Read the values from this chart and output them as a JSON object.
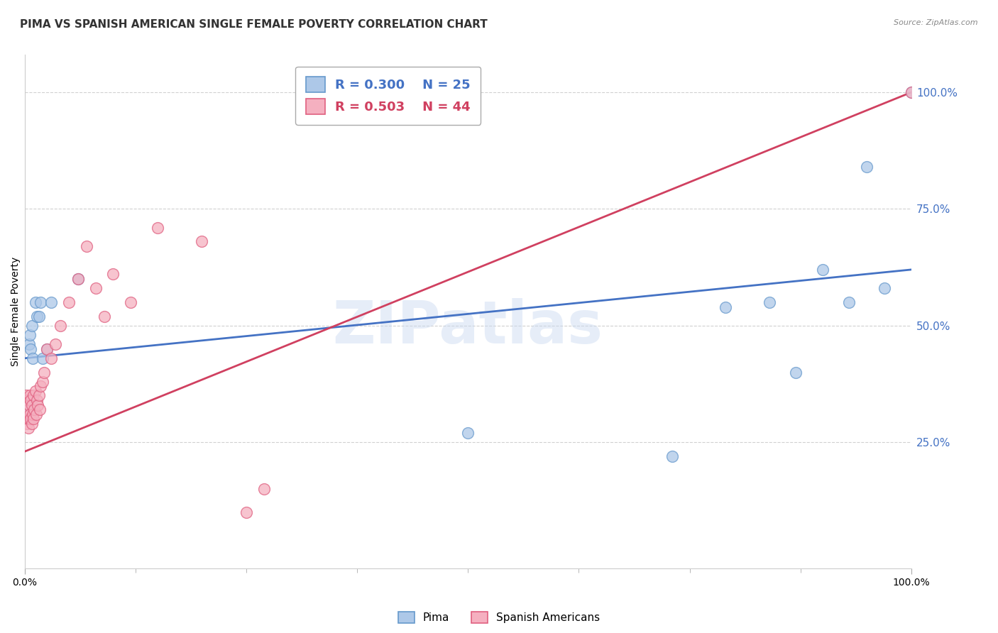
{
  "title": "PIMA VS SPANISH AMERICAN SINGLE FEMALE POVERTY CORRELATION CHART",
  "source": "Source: ZipAtlas.com",
  "ylabel": "Single Female Poverty",
  "watermark": "ZIPatlas",
  "right_ytick_labels": [
    "100.0%",
    "75.0%",
    "50.0%",
    "25.0%"
  ],
  "right_ytick_values": [
    1.0,
    0.75,
    0.5,
    0.25
  ],
  "xlim": [
    0.0,
    1.0
  ],
  "ylim": [
    -0.02,
    1.08
  ],
  "pima_color": "#adc8e8",
  "pima_edge_color": "#6699cc",
  "spanish_color": "#f5b0c0",
  "spanish_edge_color": "#e06080",
  "line_pima_color": "#4472c4",
  "line_spanish_color": "#d04060",
  "legend_pima_r": "R = 0.300",
  "legend_pima_n": "N = 25",
  "legend_spanish_r": "R = 0.503",
  "legend_spanish_n": "N = 44",
  "background_color": "#ffffff",
  "grid_color": "#cccccc",
  "title_fontsize": 11,
  "axis_label_fontsize": 10,
  "tick_fontsize": 10,
  "marker_size": 130,
  "marker_linewidth": 1.0,
  "pima_x": [
    0.003,
    0.005,
    0.006,
    0.007,
    0.008,
    0.009,
    0.01,
    0.012,
    0.014,
    0.016,
    0.018,
    0.02,
    0.025,
    0.03,
    0.06,
    0.5,
    0.73,
    0.79,
    0.84,
    0.87,
    0.9,
    0.93,
    0.95,
    0.97,
    1.0
  ],
  "pima_y": [
    0.33,
    0.46,
    0.48,
    0.45,
    0.5,
    0.43,
    0.32,
    0.55,
    0.52,
    0.52,
    0.55,
    0.43,
    0.45,
    0.55,
    0.6,
    0.27,
    0.22,
    0.54,
    0.55,
    0.4,
    0.62,
    0.55,
    0.84,
    0.58,
    1.0
  ],
  "spanish_x": [
    0.001,
    0.002,
    0.002,
    0.003,
    0.003,
    0.004,
    0.004,
    0.005,
    0.005,
    0.006,
    0.006,
    0.007,
    0.007,
    0.008,
    0.008,
    0.009,
    0.01,
    0.01,
    0.011,
    0.012,
    0.013,
    0.014,
    0.015,
    0.016,
    0.017,
    0.018,
    0.02,
    0.022,
    0.025,
    0.03,
    0.035,
    0.04,
    0.05,
    0.06,
    0.07,
    0.08,
    0.09,
    0.1,
    0.12,
    0.15,
    0.2,
    0.25,
    0.27,
    1.0
  ],
  "spanish_y": [
    0.3,
    0.3,
    0.35,
    0.29,
    0.34,
    0.28,
    0.32,
    0.3,
    0.33,
    0.31,
    0.35,
    0.3,
    0.34,
    0.29,
    0.33,
    0.31,
    0.3,
    0.35,
    0.32,
    0.36,
    0.31,
    0.34,
    0.33,
    0.35,
    0.32,
    0.37,
    0.38,
    0.4,
    0.45,
    0.43,
    0.46,
    0.5,
    0.55,
    0.6,
    0.67,
    0.58,
    0.52,
    0.61,
    0.55,
    0.71,
    0.68,
    0.1,
    0.15,
    1.0
  ],
  "pima_line_x0": 0.0,
  "pima_line_y0": 0.43,
  "pima_line_x1": 1.0,
  "pima_line_y1": 0.62,
  "spanish_line_x0": 0.0,
  "spanish_line_y0": 0.23,
  "spanish_line_x1": 1.0,
  "spanish_line_y1": 1.0
}
